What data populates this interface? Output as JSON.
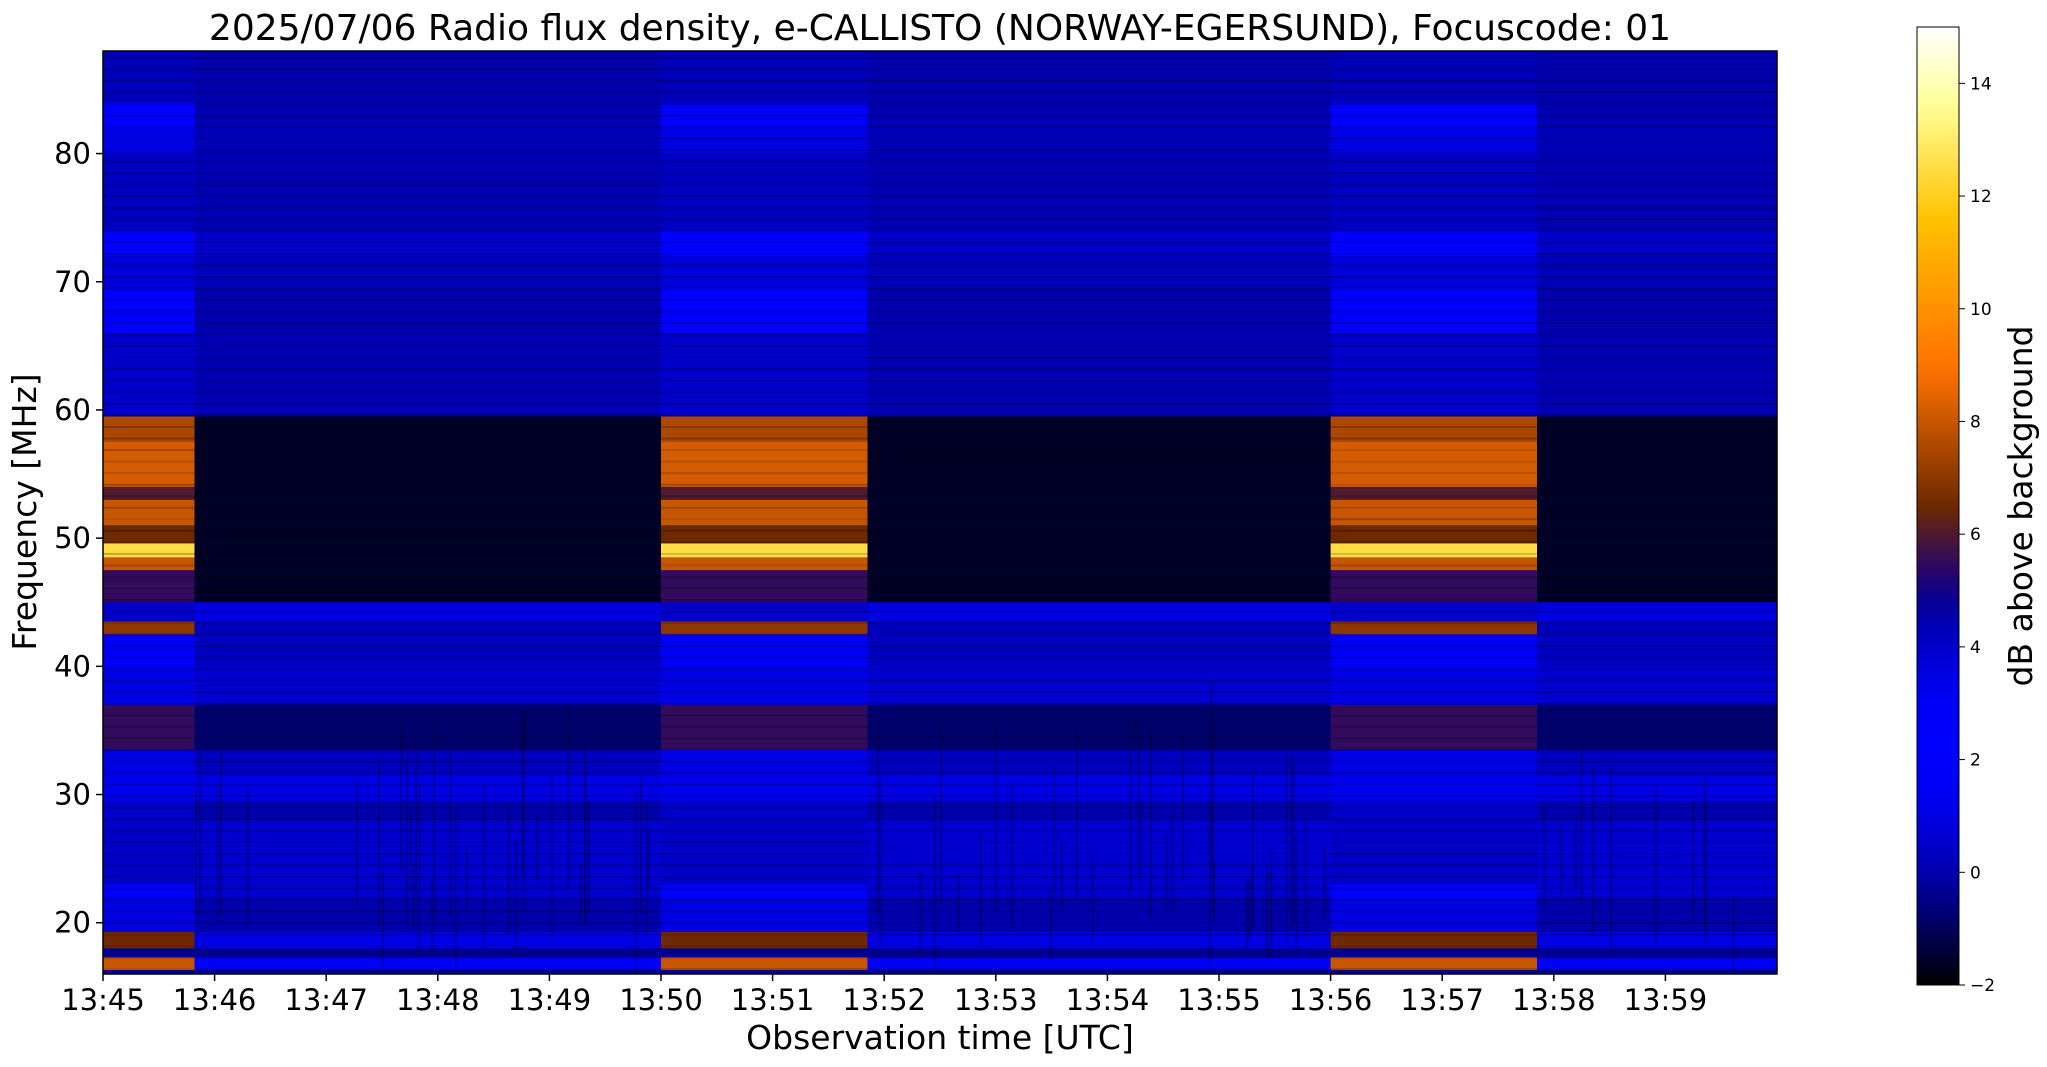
{
  "chart_data": {
    "type": "heatmap",
    "title": "2025/07/06  Radio flux density, e-CALLISTO (NORWAY-EGERSUND), Focuscode: 01",
    "xlabel": "Observation time [UTC]",
    "ylabel": "Frequency [MHz]",
    "colorbar_label": "dB above background",
    "colormap": "gnuplot2",
    "x_ticks": [
      "13:45",
      "13:46",
      "13:47",
      "13:48",
      "13:49",
      "13:50",
      "13:51",
      "13:52",
      "13:53",
      "13:54",
      "13:55",
      "13:56",
      "13:57",
      "13:58",
      "13:59"
    ],
    "x_range_minutes": [
      0,
      15
    ],
    "y_ticks": [
      20,
      30,
      40,
      50,
      60,
      70,
      80
    ],
    "ylim": [
      16,
      88
    ],
    "colorbar_ticks": [
      -2,
      0,
      2,
      4,
      6,
      8,
      10,
      12,
      14
    ],
    "clim": [
      -2,
      15
    ],
    "calibration_intervals_minutes": [
      [
        0,
        0.82
      ],
      [
        5,
        6.85
      ],
      [
        11,
        12.85
      ]
    ],
    "bands_mhz": [
      {
        "lo": 16.3,
        "hi": 17.3,
        "bright": 8,
        "quiet": 2.5
      },
      {
        "lo": 18.0,
        "hi": 19.3,
        "bright": 6.5,
        "quiet": 1.0
      },
      {
        "lo": 19.3,
        "hi": 22.0,
        "bright": 1.0,
        "quiet": 0.0
      },
      {
        "lo": 22.0,
        "hi": 23.0,
        "bright": 2.0,
        "quiet": 0.6
      },
      {
        "lo": 23.0,
        "hi": 28.0,
        "bright": 0.4,
        "quiet": 0.6
      },
      {
        "lo": 28.0,
        "hi": 29.5,
        "bright": 0.5,
        "quiet": 0.0
      },
      {
        "lo": 29.5,
        "hi": 31.5,
        "bright": 1.2,
        "quiet": 1.0
      },
      {
        "lo": 31.5,
        "hi": 33.5,
        "bright": 3.5,
        "quiet": 0.3
      },
      {
        "lo": 33.5,
        "hi": 37.0,
        "bright": 5.5,
        "quiet": -0.8
      },
      {
        "lo": 37.0,
        "hi": 40.0,
        "bright": 3.5,
        "quiet": 0.6
      },
      {
        "lo": 40.0,
        "hi": 42.5,
        "bright": 2.8,
        "quiet": 0.3
      },
      {
        "lo": 42.5,
        "hi": 43.5,
        "bright": 7.0,
        "quiet": 0.2
      },
      {
        "lo": 43.5,
        "hi": 45.0,
        "bright": 4.0,
        "quiet": 0.9
      },
      {
        "lo": 45.0,
        "hi": 47.5,
        "bright": 5.5,
        "quiet": -1.6
      },
      {
        "lo": 47.5,
        "hi": 48.5,
        "bright": 8.0,
        "quiet": -1.6
      },
      {
        "lo": 48.5,
        "hi": 49.6,
        "bright": 12.5,
        "quiet": -1.6
      },
      {
        "lo": 49.6,
        "hi": 51.0,
        "bright": 6.5,
        "quiet": -1.6
      },
      {
        "lo": 51.0,
        "hi": 53.0,
        "bright": 8.0,
        "quiet": -1.6
      },
      {
        "lo": 53.0,
        "hi": 54.0,
        "bright": 6.0,
        "quiet": -1.6
      },
      {
        "lo": 54.0,
        "hi": 57.5,
        "bright": 8.2,
        "quiet": -1.6
      },
      {
        "lo": 57.5,
        "hi": 59.5,
        "bright": 7.5,
        "quiet": -1.6
      },
      {
        "lo": 59.5,
        "hi": 66.0,
        "bright": 0.5,
        "quiet": 0.1
      },
      {
        "lo": 66.0,
        "hi": 69.5,
        "bright": 2.5,
        "quiet": 0.0
      },
      {
        "lo": 69.5,
        "hi": 72.0,
        "bright": 0.8,
        "quiet": 0.2
      },
      {
        "lo": 72.0,
        "hi": 74.0,
        "bright": 2.2,
        "quiet": 0.4
      },
      {
        "lo": 74.0,
        "hi": 80.0,
        "bright": 0.3,
        "quiet": 0.1
      },
      {
        "lo": 80.0,
        "hi": 82.0,
        "bright": 1.0,
        "quiet": 0.2
      },
      {
        "lo": 82.0,
        "hi": 84.0,
        "bright": 2.5,
        "quiet": 0.1
      },
      {
        "lo": 84.0,
        "hi": 88.0,
        "bright": 0.2,
        "quiet": 0.0
      }
    ]
  }
}
